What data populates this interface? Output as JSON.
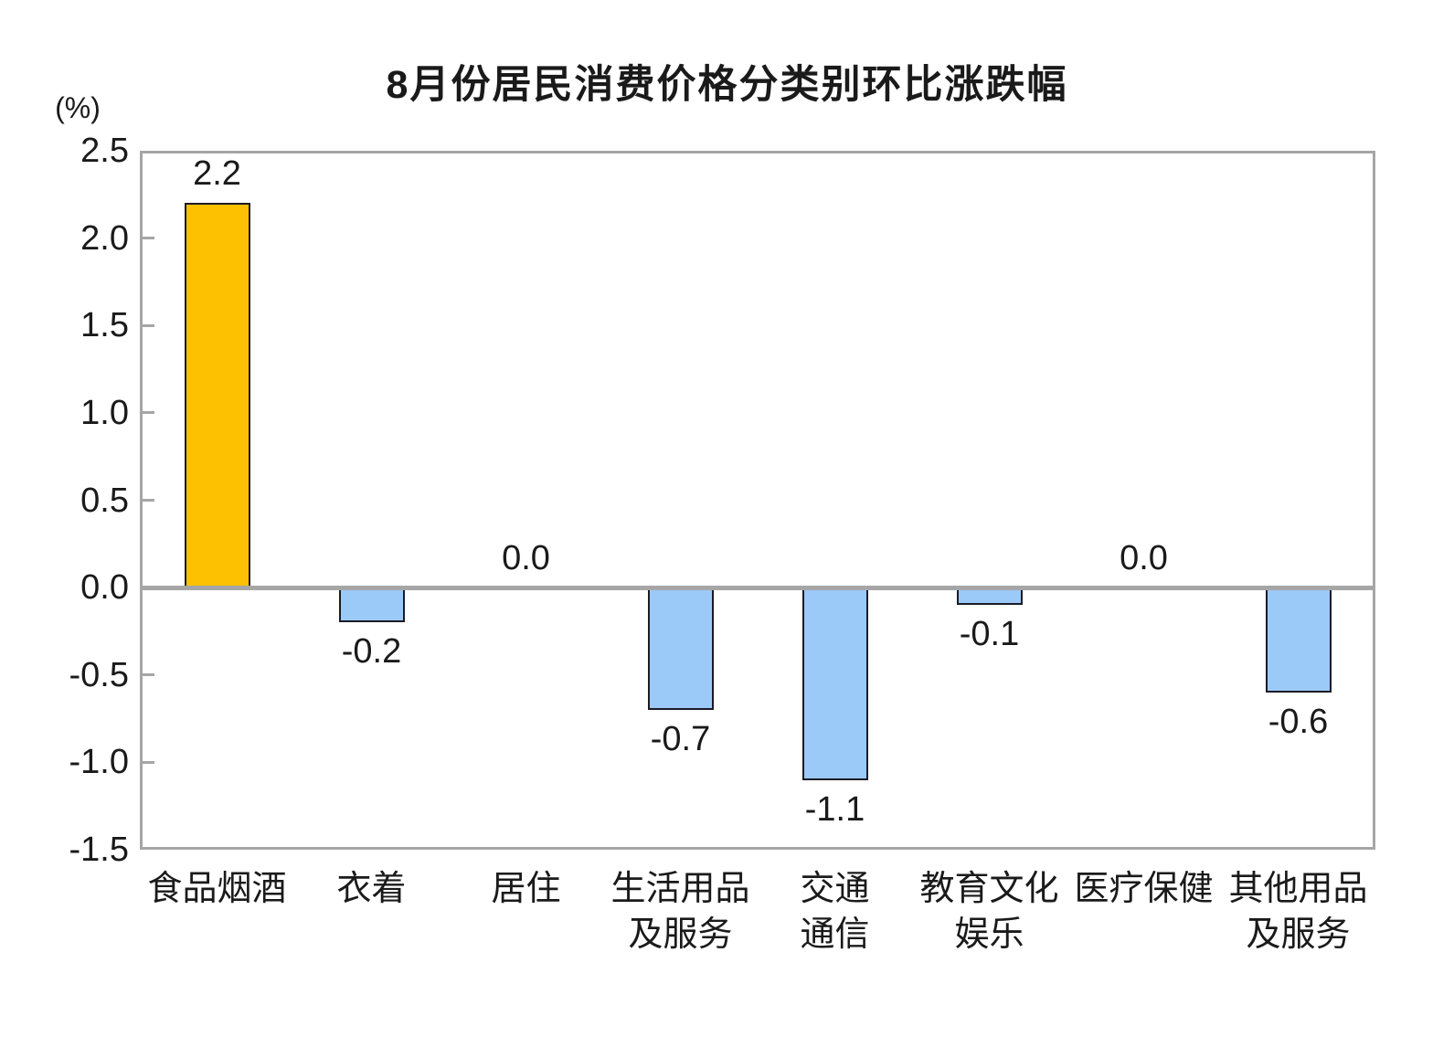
{
  "chart_data": {
    "type": "bar",
    "title": "8月份居民消费价格分类别环比涨跌幅",
    "unit_label": "(%)",
    "categories": [
      "食品烟酒",
      "衣着",
      "居住",
      "生活用品及服务",
      "交通通信",
      "教育文化娱乐",
      "医疗保健",
      "其他用品及服务"
    ],
    "category_lines": [
      [
        "食品烟酒"
      ],
      [
        "衣着"
      ],
      [
        "居住"
      ],
      [
        "生活用品",
        "及服务"
      ],
      [
        "交通",
        "通信"
      ],
      [
        "教育文化",
        "娱乐"
      ],
      [
        "医疗保健"
      ],
      [
        "其他用品",
        "及服务"
      ]
    ],
    "values": [
      2.2,
      -0.2,
      0.0,
      -0.7,
      -1.1,
      -0.1,
      0.0,
      -0.6
    ],
    "value_labels": [
      "2.2",
      "-0.2",
      "0.0",
      "-0.7",
      "-1.1",
      "-0.1",
      "0.0",
      "-0.6"
    ],
    "ylabel": "",
    "xlabel": "",
    "ylim": [
      -1.5,
      2.5
    ],
    "ytick_step": 0.5,
    "ytick_labels": [
      "2.5",
      "2.0",
      "1.5",
      "1.0",
      "0.5",
      "0.0",
      "-0.5",
      "-1.0",
      "-1.5"
    ],
    "ytick_values": [
      2.5,
      2.0,
      1.5,
      1.0,
      0.5,
      0.0,
      -0.5,
      -1.0,
      -1.5
    ],
    "inner_tick_values": [
      2.0,
      1.5,
      1.0,
      0.5,
      -0.5,
      -1.0
    ],
    "grid": false,
    "legend": "none",
    "highlight_index": 0,
    "colors": {
      "bar_highlight": "#fdc101",
      "bar_default": "#9ccaf8",
      "bar_border": "#1b1b26",
      "frame": "#a6a6a6",
      "zero_line": "#a6a6a6",
      "text": "#1a1a1a"
    }
  }
}
